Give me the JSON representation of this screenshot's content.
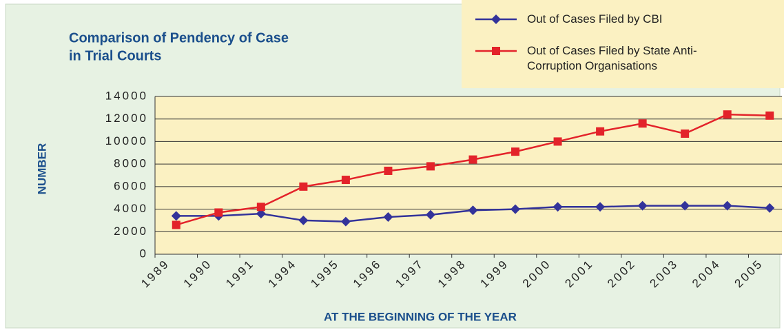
{
  "chart_data": {
    "type": "line",
    "title": [
      "Comparison of Pendency of Case",
      "in Trial Courts"
    ],
    "xlabel": "AT THE BEGINNING OF THE YEAR",
    "ylabel": "NUMBER",
    "categories": [
      "1989",
      "1990",
      "1991",
      "1994",
      "1995",
      "1996",
      "1997",
      "1998",
      "1999",
      "2000",
      "2001",
      "2002",
      "2003",
      "2004",
      "2005"
    ],
    "series": [
      {
        "name": "Out of Cases Filed by CBI",
        "color": "#33339a",
        "marker": "diamond",
        "values": [
          3400,
          3400,
          3600,
          3000,
          2900,
          3300,
          3500,
          3900,
          4000,
          4200,
          4200,
          4300,
          4300,
          4300,
          4100
        ]
      },
      {
        "name": "Out of Cases Filed by State Anti-Corruption Organisations",
        "color": "#e3232a",
        "marker": "square",
        "values": [
          2600,
          3700,
          4200,
          6000,
          6600,
          7400,
          7800,
          8400,
          9100,
          10000,
          10900,
          11600,
          10700,
          12400,
          12300
        ]
      }
    ],
    "ylim": [
      0,
      14000
    ],
    "yticks": [
      0,
      2000,
      4000,
      6000,
      8000,
      10000,
      12000,
      14000
    ],
    "grid": true,
    "legend": "top-right"
  }
}
